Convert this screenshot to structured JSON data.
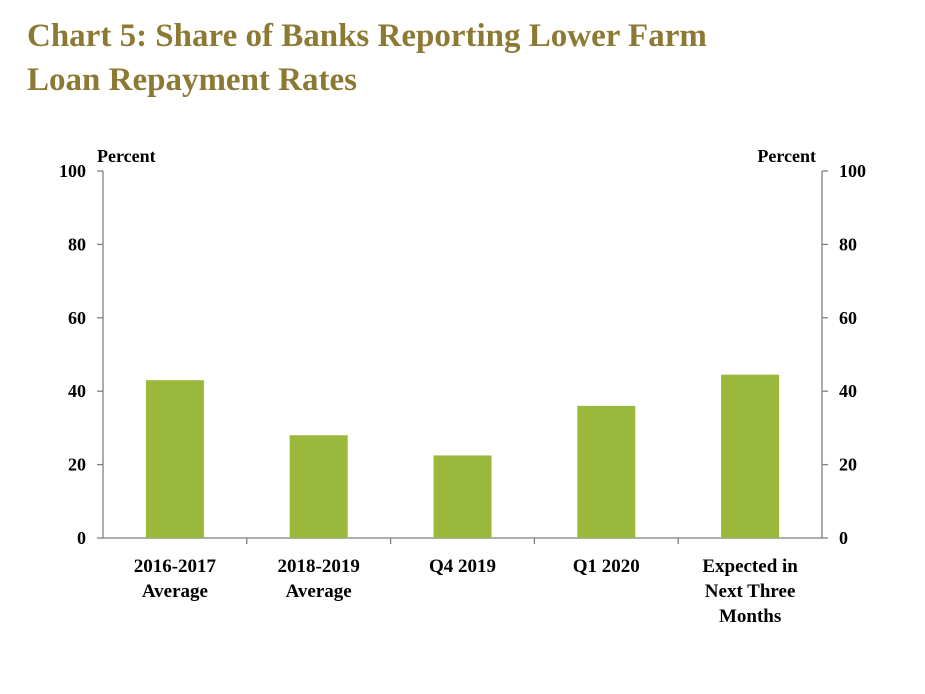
{
  "title_lines": [
    "Chart 5: Share of Banks Reporting Lower Farm",
    "Loan Repayment Rates"
  ],
  "colors": {
    "title": "#8c7a34",
    "bar": "#99b83c",
    "axis": "#7f7f7f"
  },
  "chart_data": {
    "type": "bar",
    "title": "Chart 5: Share of Banks Reporting Lower Farm Loan Repayment Rates",
    "categories": [
      [
        "2016-2017",
        "Average"
      ],
      [
        "2018-2019",
        "Average"
      ],
      [
        "Q4 2019"
      ],
      [
        "Q1 2020"
      ],
      [
        "Expected in",
        "Next Three",
        "Months"
      ]
    ],
    "values": [
      43,
      28,
      22.5,
      36,
      44.5
    ],
    "ylabel_left": "Percent",
    "ylabel_right": "Percent",
    "ylim": [
      0,
      100
    ],
    "yticks": [
      0,
      20,
      40,
      60,
      80,
      100
    ],
    "grid": false,
    "legend": "none"
  }
}
